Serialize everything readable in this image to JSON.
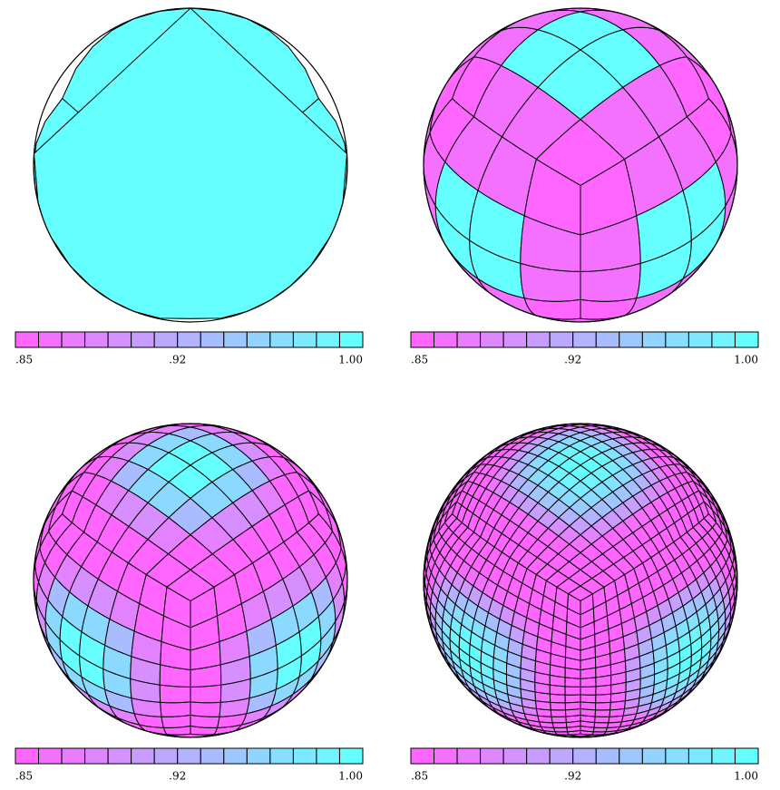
{
  "panels": [
    {
      "colorbar": {
        "ticks": [
          {
            "value": 0.85,
            "label": ".85"
          },
          {
            "value": 0.92,
            "label": ".92"
          },
          {
            "value": 1.0,
            "label": "1.00"
          }
        ],
        "colors": [
          "#ff66ff",
          "#66ffff"
        ]
      }
    },
    {
      "colorbar": {
        "ticks": [
          {
            "value": 0.85,
            "label": ".85"
          },
          {
            "value": 0.92,
            "label": ".92"
          },
          {
            "value": 1.0,
            "label": "1.00"
          }
        ],
        "colors": [
          "#ff66ff",
          "#66ffff"
        ]
      }
    },
    {
      "colorbar": {
        "ticks": [
          {
            "value": 0.85,
            "label": ".85"
          },
          {
            "value": 0.92,
            "label": ".92"
          },
          {
            "value": 1.0,
            "label": "1.00"
          }
        ],
        "colors": [
          "#ff66ff",
          "#66ffff"
        ]
      }
    },
    {
      "colorbar": {
        "ticks": [
          {
            "value": 0.85,
            "label": ".85"
          },
          {
            "value": 0.92,
            "label": ".92"
          },
          {
            "value": 1.0,
            "label": "1.00"
          }
        ],
        "colors": [
          "#ff66ff",
          "#66ffff"
        ]
      }
    }
  ]
}
